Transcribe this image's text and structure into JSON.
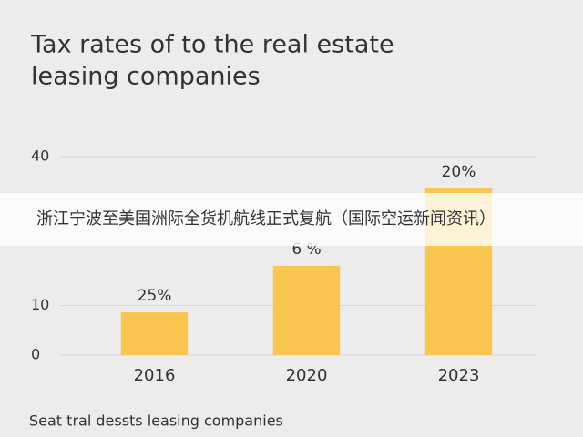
{
  "chart_data": {
    "type": "bar",
    "title_lines": [
      "Tax rates of to the real estate",
      "leasing companies"
    ],
    "categories": [
      "2016",
      "2020",
      "2023"
    ],
    "values": [
      8.6,
      18,
      33.6
    ],
    "annotations": [
      "25%",
      "6 %",
      "20%"
    ],
    "color": "#f9c650",
    "ylim": [
      0,
      40
    ],
    "yticks": [
      0,
      10,
      40
    ],
    "grid": true,
    "footer": "Seat tral dessts leasing companies"
  },
  "overlay_banner": "浙江宁波至美国洲际全货机航线正式复航（国际空运新闻资讯）"
}
